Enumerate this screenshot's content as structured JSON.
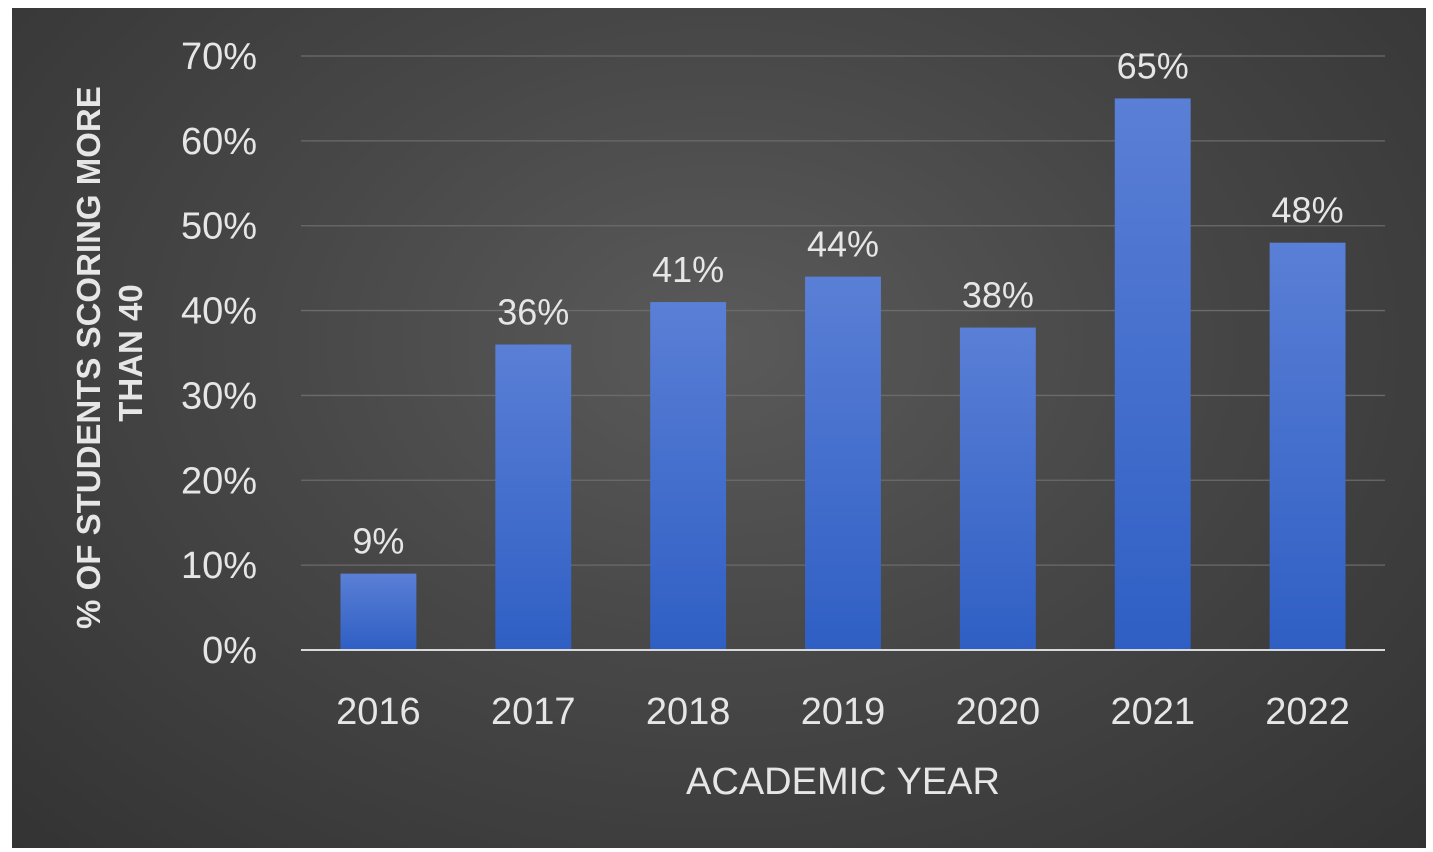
{
  "chart_data": {
    "type": "bar",
    "categories": [
      "2016",
      "2017",
      "2018",
      "2019",
      "2020",
      "2021",
      "2022"
    ],
    "values": [
      9,
      36,
      41,
      44,
      38,
      65,
      48
    ],
    "data_labels": [
      "9%",
      "36%",
      "41%",
      "44%",
      "38%",
      "65%",
      "48%"
    ],
    "ylim": [
      0,
      70
    ],
    "yticks": [
      "0%",
      "10%",
      "20%",
      "30%",
      "40%",
      "50%",
      "60%",
      "70%"
    ],
    "xlabel": "ACADEMIC YEAR",
    "ylabel_lines": [
      "% OF STUDENTS SCORING MORE",
      "THAN 40"
    ],
    "grid": true,
    "legend": "none",
    "colors": {
      "bar_top": "#5a7fd6",
      "bar_bottom": "#2f5fc4",
      "text": "#e6e6e6",
      "background": "#474747"
    }
  }
}
